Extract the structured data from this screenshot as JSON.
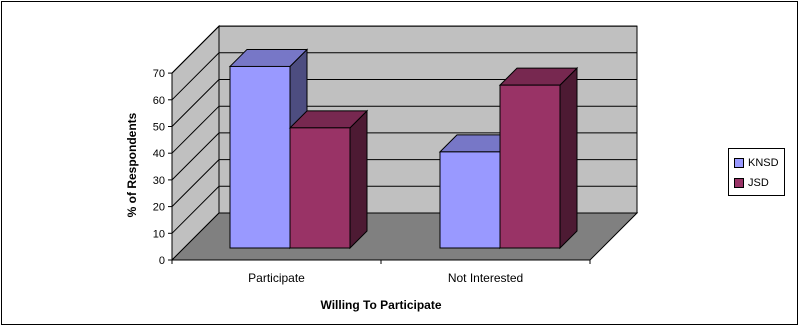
{
  "chart_data": {
    "type": "bar",
    "categories": [
      "Participate",
      "Not Interested"
    ],
    "series": [
      {
        "name": "KNSD",
        "values": [
          68,
          36
        ]
      },
      {
        "name": "JSD",
        "values": [
          45,
          61
        ]
      }
    ],
    "title": "",
    "xlabel": "Willing To Participate",
    "ylabel": "% of Respondents",
    "ylim": [
      0,
      70
    ],
    "yticks": [
      "0",
      "10",
      "20",
      "30",
      "40",
      "50",
      "60",
      "70"
    ],
    "grid": true,
    "legend_position": "right",
    "colors": {
      "KNSD": "#9999ff",
      "JSD": "#993366",
      "walls": "#c0c0c0",
      "floor": "#808080"
    }
  }
}
